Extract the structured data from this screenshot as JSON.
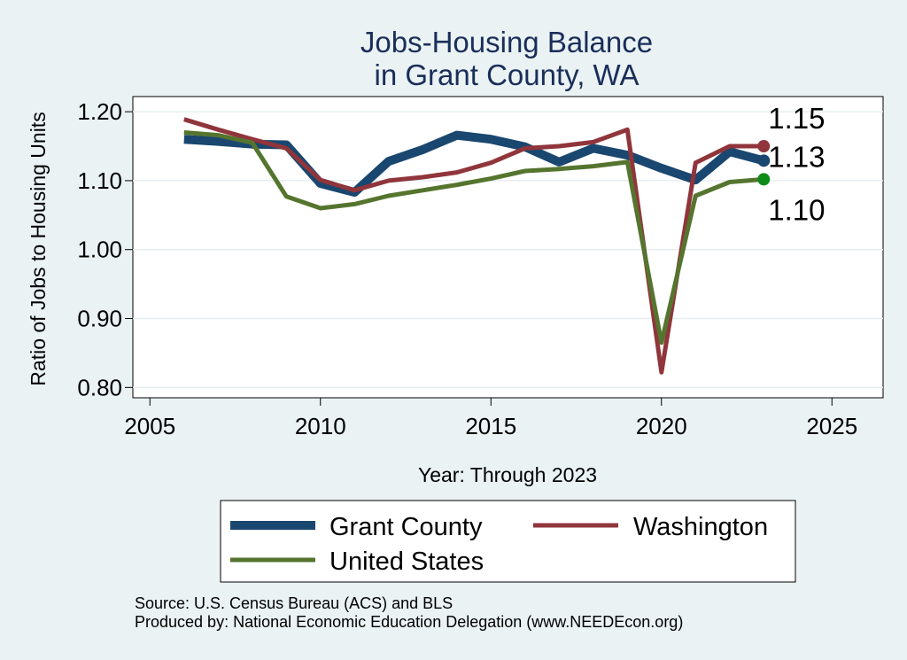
{
  "chart_data": {
    "type": "line",
    "title": [
      "Jobs-Housing Balance",
      "in Grant County, WA"
    ],
    "xlabel": "Year: Through 2023",
    "ylabel": "Ratio of Jobs to Housing Units",
    "xlim": [
      2004.5,
      2026.5
    ],
    "ylim": [
      0.785,
      1.222
    ],
    "xticks": [
      2005,
      2010,
      2015,
      2020,
      2025
    ],
    "yticks": [
      0.8,
      0.9,
      1.0,
      1.1,
      1.2
    ],
    "ytick_labels": [
      "0.80",
      "0.90",
      "1.00",
      "1.10",
      "1.20"
    ],
    "grid": true,
    "x": [
      2006,
      2007,
      2008,
      2009,
      2010,
      2011,
      2012,
      2013,
      2014,
      2015,
      2016,
      2017,
      2018,
      2019,
      2020,
      2021,
      2022,
      2023
    ],
    "series": [
      {
        "name": "Grant County",
        "color": "#1a476f",
        "values": [
          1.16,
          1.157,
          1.153,
          1.152,
          1.096,
          1.083,
          1.128,
          1.145,
          1.166,
          1.16,
          1.149,
          1.127,
          1.147,
          1.137,
          1.118,
          1.101,
          1.142,
          1.129
        ],
        "end_label": "1.13"
      },
      {
        "name": "Washington",
        "color": "#90353b",
        "values": [
          1.189,
          1.174,
          1.16,
          1.147,
          1.101,
          1.086,
          1.1,
          1.105,
          1.112,
          1.126,
          1.147,
          1.15,
          1.156,
          1.174,
          0.822,
          1.126,
          1.15,
          1.15
        ],
        "end_label": "1.15"
      },
      {
        "name": "United States",
        "color": "#55752f",
        "values": [
          1.17,
          1.166,
          1.155,
          1.077,
          1.06,
          1.066,
          1.078,
          1.086,
          1.094,
          1.103,
          1.114,
          1.117,
          1.121,
          1.127,
          0.865,
          1.078,
          1.098,
          1.102
        ],
        "end_label": "1.10"
      }
    ],
    "legend": [
      "Grant County",
      "Washington",
      "United States"
    ],
    "legend_position": "bottom",
    "source_note": "Source: U.S. Census Bureau (ACS) and BLS",
    "produced_note": "Produced by: National Economic Education Delegation (www.NEEDEcon.org)"
  }
}
